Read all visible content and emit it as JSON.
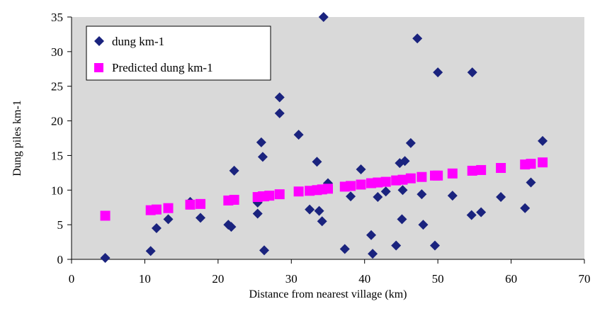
{
  "chart_data": {
    "type": "scatter",
    "xlabel": "Distance from nearest village (km)",
    "ylabel": "Dung piles km-1",
    "xlim": [
      0,
      70
    ],
    "ylim": [
      0,
      35
    ],
    "xticks": [
      0,
      10,
      20,
      30,
      40,
      50,
      60,
      70
    ],
    "yticks": [
      0,
      5,
      10,
      15,
      20,
      25,
      30,
      35
    ],
    "x_tick_labels": [
      "0",
      "10",
      "20",
      "30",
      "40",
      "50",
      "60",
      "70"
    ],
    "y_tick_labels": [
      "0",
      "5",
      "10",
      "15",
      "20",
      "25",
      "30",
      "35"
    ],
    "grid": false,
    "plot_background": "#d9d9d9",
    "legend": {
      "placement": "top-left"
    },
    "series": [
      {
        "name": "dung km-1",
        "marker": "diamond",
        "color": "#1a237e",
        "points": [
          [
            4.6,
            0.2
          ],
          [
            10.8,
            1.2
          ],
          [
            11.6,
            4.5
          ],
          [
            13.2,
            5.8
          ],
          [
            16.2,
            8.3
          ],
          [
            17.6,
            6.0
          ],
          [
            21.4,
            5.0
          ],
          [
            21.8,
            4.7
          ],
          [
            22.2,
            12.8
          ],
          [
            25.4,
            6.6
          ],
          [
            25.4,
            8.2
          ],
          [
            25.9,
            16.9
          ],
          [
            26.1,
            14.8
          ],
          [
            26.3,
            1.3
          ],
          [
            28.4,
            23.4
          ],
          [
            28.4,
            21.1
          ],
          [
            31.0,
            18.0
          ],
          [
            32.5,
            7.2
          ],
          [
            33.5,
            14.1
          ],
          [
            33.8,
            7.0
          ],
          [
            34.2,
            5.5
          ],
          [
            34.4,
            35.0
          ],
          [
            35.0,
            11.0
          ],
          [
            37.3,
            1.5
          ],
          [
            38.1,
            9.1
          ],
          [
            39.5,
            13.0
          ],
          [
            40.9,
            3.5
          ],
          [
            41.1,
            0.8
          ],
          [
            41.8,
            9.0
          ],
          [
            42.9,
            9.8
          ],
          [
            44.3,
            2.0
          ],
          [
            44.8,
            13.9
          ],
          [
            45.1,
            5.8
          ],
          [
            45.2,
            10.0
          ],
          [
            45.5,
            14.2
          ],
          [
            46.3,
            16.8
          ],
          [
            47.2,
            31.9
          ],
          [
            47.8,
            9.4
          ],
          [
            48.0,
            5.0
          ],
          [
            49.6,
            2.0
          ],
          [
            50.0,
            27.0
          ],
          [
            52.0,
            9.2
          ],
          [
            54.6,
            6.4
          ],
          [
            54.7,
            27.0
          ],
          [
            55.9,
            6.8
          ],
          [
            58.6,
            9.0
          ],
          [
            61.9,
            7.4
          ],
          [
            62.7,
            11.1
          ],
          [
            64.3,
            17.1
          ]
        ]
      },
      {
        "name": "Predicted dung km-1",
        "marker": "square",
        "color": "#ff00ff",
        "points": [
          [
            4.6,
            6.3
          ],
          [
            10.8,
            7.1
          ],
          [
            11.6,
            7.2
          ],
          [
            13.2,
            7.4
          ],
          [
            16.2,
            7.9
          ],
          [
            17.6,
            8.0
          ],
          [
            21.4,
            8.5
          ],
          [
            22.2,
            8.6
          ],
          [
            25.4,
            9.0
          ],
          [
            26.1,
            9.1
          ],
          [
            26.3,
            9.1
          ],
          [
            27.0,
            9.2
          ],
          [
            28.4,
            9.4
          ],
          [
            31.0,
            9.8
          ],
          [
            32.5,
            9.9
          ],
          [
            33.5,
            10.0
          ],
          [
            34.2,
            10.1
          ],
          [
            35.0,
            10.2
          ],
          [
            37.3,
            10.5
          ],
          [
            38.1,
            10.6
          ],
          [
            39.5,
            10.8
          ],
          [
            40.9,
            11.0
          ],
          [
            41.8,
            11.1
          ],
          [
            42.9,
            11.2
          ],
          [
            44.3,
            11.4
          ],
          [
            45.2,
            11.5
          ],
          [
            46.3,
            11.7
          ],
          [
            47.8,
            11.9
          ],
          [
            49.6,
            12.1
          ],
          [
            50.0,
            12.1
          ],
          [
            52.0,
            12.4
          ],
          [
            54.7,
            12.8
          ],
          [
            55.9,
            12.9
          ],
          [
            58.6,
            13.2
          ],
          [
            61.9,
            13.7
          ],
          [
            62.7,
            13.8
          ],
          [
            64.3,
            14.0
          ]
        ]
      }
    ]
  }
}
